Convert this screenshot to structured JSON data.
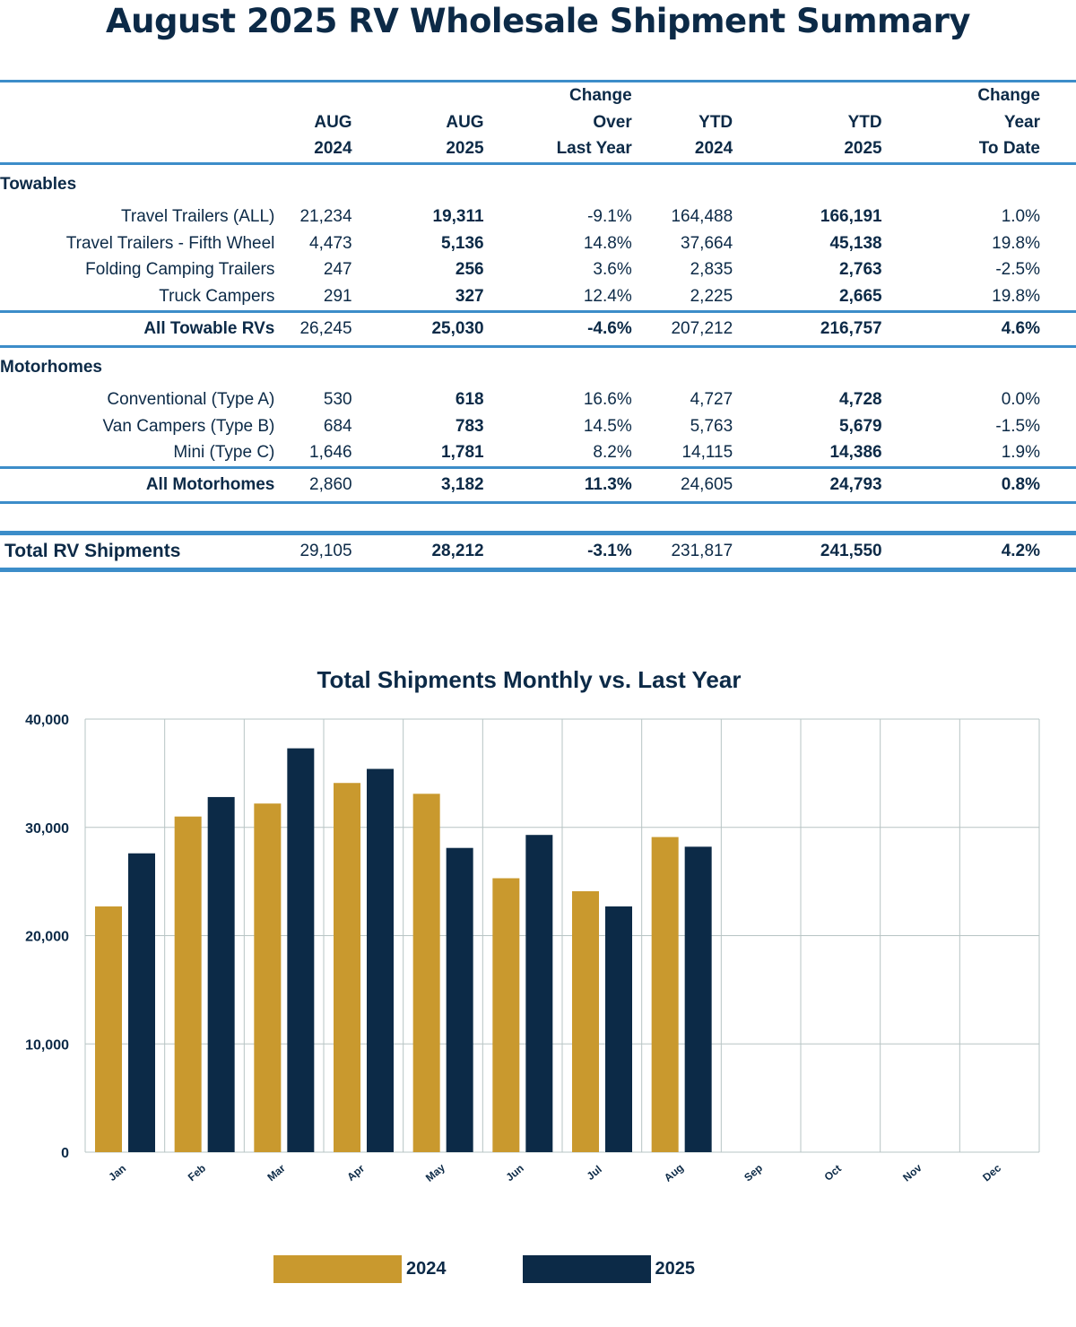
{
  "title": "August 2025 RV Wholesale Shipment Summary",
  "table": {
    "headers": [
      [
        "",
        "AUG",
        "2024"
      ],
      [
        "",
        "AUG",
        "2025"
      ],
      [
        "Change",
        "Over",
        "Last Year"
      ],
      [
        "",
        "YTD",
        "2024"
      ],
      [
        "",
        "YTD",
        "2025"
      ],
      [
        "Change",
        "Year",
        "To Date"
      ]
    ],
    "sections": [
      {
        "name": "Towables",
        "rows": [
          {
            "label": "Travel Trailers (ALL)",
            "values": [
              "21,234",
              "19,311",
              "-9.1%",
              "164,488",
              "166,191",
              "1.0%"
            ]
          },
          {
            "label": "Travel Trailers - Fifth Wheel",
            "values": [
              "4,473",
              "5,136",
              "14.8%",
              "37,664",
              "45,138",
              "19.8%"
            ]
          },
          {
            "label": "Folding Camping Trailers",
            "values": [
              "247",
              "256",
              "3.6%",
              "2,835",
              "2,763",
              "-2.5%"
            ]
          },
          {
            "label": "Truck Campers",
            "values": [
              "291",
              "327",
              "12.4%",
              "2,225",
              "2,665",
              "19.8%"
            ]
          }
        ],
        "subtotal": {
          "label": "All Towable RVs",
          "values": [
            "26,245",
            "25,030",
            "-4.6%",
            "207,212",
            "216,757",
            "4.6%"
          ]
        }
      },
      {
        "name": "Motorhomes",
        "rows": [
          {
            "label": "Conventional (Type A)",
            "values": [
              "530",
              "618",
              "16.6%",
              "4,727",
              "4,728",
              "0.0%"
            ]
          },
          {
            "label": "Van Campers (Type B)",
            "values": [
              "684",
              "783",
              "14.5%",
              "5,763",
              "5,679",
              "-1.5%"
            ]
          },
          {
            "label": "Mini (Type C)",
            "values": [
              "1,646",
              "1,781",
              "8.2%",
              "14,115",
              "14,386",
              "1.9%"
            ]
          }
        ],
        "subtotal": {
          "label": "All Motorhomes",
          "values": [
            "2,860",
            "3,182",
            "11.3%",
            "24,605",
            "24,793",
            "0.8%"
          ]
        }
      }
    ],
    "total": {
      "label": "Total RV Shipments",
      "values": [
        "29,105",
        "28,212",
        "-3.1%",
        "231,817",
        "241,550",
        "4.2%"
      ]
    }
  },
  "chart_data": {
    "type": "bar",
    "title": "Total Shipments Monthly vs. Last Year",
    "categories": [
      "Jan",
      "Feb",
      "Mar",
      "Apr",
      "May",
      "Jun",
      "Jul",
      "Aug",
      "Sep",
      "Oct",
      "Nov",
      "Dec"
    ],
    "series": [
      {
        "name": "2024",
        "color": "#c9992e",
        "values": [
          22700,
          31000,
          32200,
          34100,
          33100,
          25300,
          24100,
          29105,
          null,
          null,
          null,
          null
        ]
      },
      {
        "name": "2025",
        "color": "#0c2a47",
        "values": [
          27600,
          32800,
          37300,
          35400,
          28100,
          29300,
          22700,
          28212,
          null,
          null,
          null,
          null
        ]
      }
    ],
    "ylim": [
      0,
      40000
    ],
    "yticks": [
      0,
      10000,
      20000,
      30000,
      40000
    ],
    "ytick_labels": [
      "0",
      "10,000",
      "20,000",
      "30,000",
      "40,000"
    ],
    "grid": true,
    "legend_position": "bottom"
  }
}
